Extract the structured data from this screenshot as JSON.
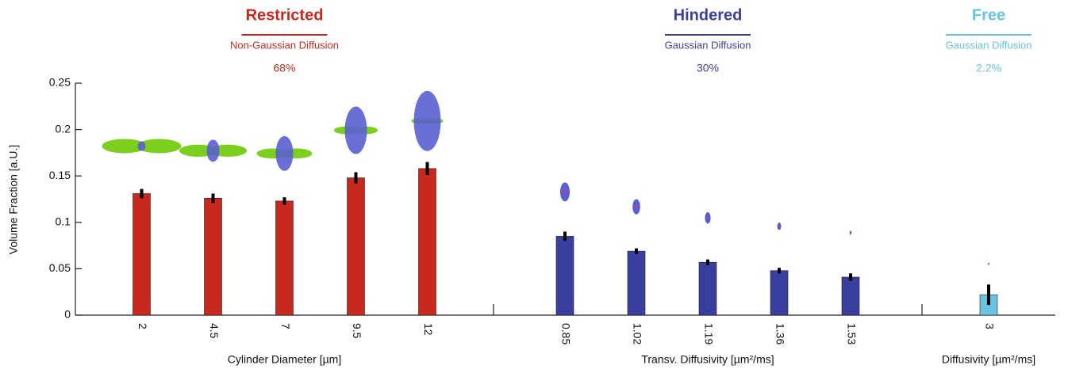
{
  "chart_data": {
    "type": "bar",
    "ylabel": "Volume Fraction [a.U.]",
    "ylim": [
      0,
      0.25
    ],
    "yticks": [
      0,
      0.05,
      0.1,
      0.15,
      0.2,
      0.25
    ],
    "groups": [
      {
        "title": "Restricted",
        "subtitle": "Non-Gaussian Diffusion",
        "percent": "68%",
        "xlabel": "Cylinder Diameter [µm]",
        "color": "#c8291e",
        "categories": [
          "2",
          "4.5",
          "7",
          "9.5",
          "12"
        ],
        "values": [
          0.131,
          0.126,
          0.123,
          0.148,
          0.158
        ],
        "errors": [
          0.005,
          0.005,
          0.004,
          0.006,
          0.007
        ]
      },
      {
        "title": "Hindered",
        "subtitle": "Gaussian Diffusion",
        "percent": "30%",
        "xlabel": "Transv. Diffusivity [µm²/ms]",
        "color": "#3a3f9f",
        "categories": [
          "0.85",
          "1.02",
          "1.19",
          "1.36",
          "1.53"
        ],
        "values": [
          0.085,
          0.069,
          0.057,
          0.048,
          0.041
        ],
        "errors": [
          0.005,
          0.003,
          0.003,
          0.003,
          0.004
        ]
      },
      {
        "title": "Free",
        "subtitle": "Gaussian Diffusion",
        "percent": "2.2%",
        "xlabel": "Diffusivity [µm²/ms]",
        "color": "#68c4e0",
        "categories": [
          "3"
        ],
        "values": [
          0.022
        ],
        "errors": [
          0.011
        ]
      }
    ]
  }
}
